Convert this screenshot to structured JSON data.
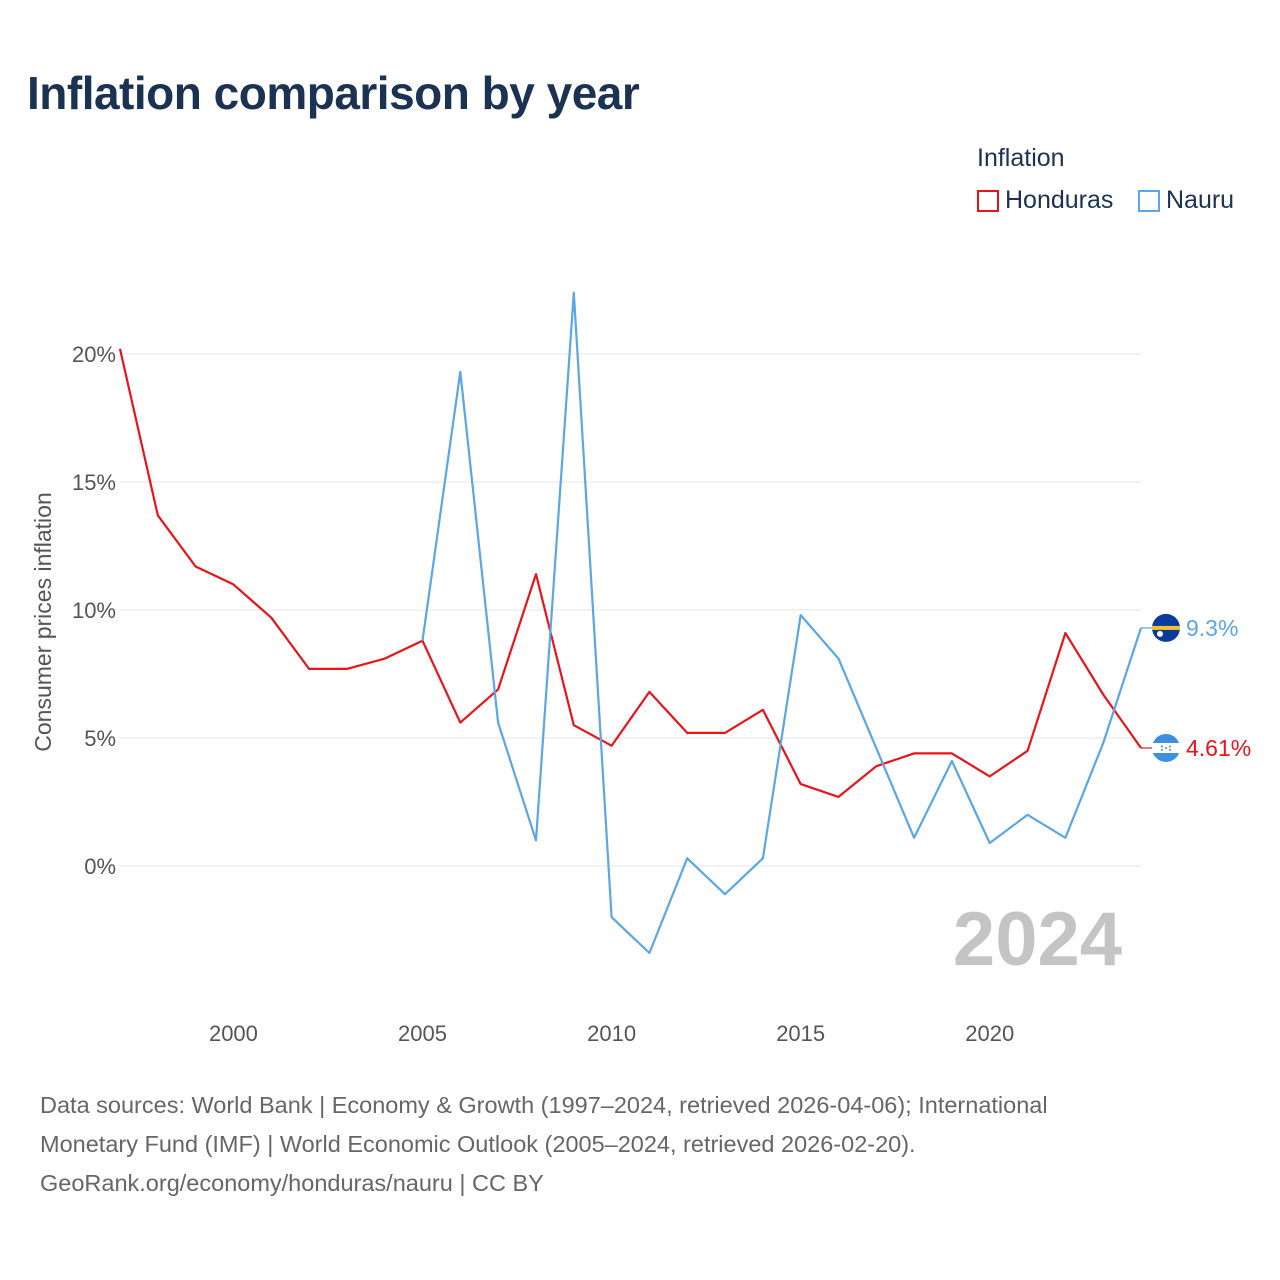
{
  "title": "Inflation comparison by year",
  "legend": {
    "title": "Inflation",
    "items": [
      {
        "label": "Honduras",
        "color": "#e8141b"
      },
      {
        "label": "Nauru",
        "color": "#5aa6e6"
      }
    ]
  },
  "chart_data": {
    "type": "line",
    "title": "Inflation comparison by year",
    "xlabel": "",
    "ylabel": "Consumer prices inflation",
    "xlim": [
      1997,
      2024
    ],
    "ylim": [
      -5,
      22.5
    ],
    "x_ticks": [
      2000,
      2005,
      2010,
      2015,
      2020
    ],
    "y_ticks": [
      0,
      5,
      10,
      15,
      20
    ],
    "y_tick_labels": [
      "0%",
      "5%",
      "10%",
      "15%",
      "20%"
    ],
    "grid": true,
    "legend_position": "top-right",
    "watermark_year": "2024",
    "series": [
      {
        "name": "Honduras",
        "color": "#e8141b",
        "x": [
          1997,
          1998,
          1999,
          2000,
          2001,
          2002,
          2003,
          2004,
          2005,
          2006,
          2007,
          2008,
          2009,
          2010,
          2011,
          2012,
          2013,
          2014,
          2015,
          2016,
          2017,
          2018,
          2019,
          2020,
          2021,
          2022,
          2023,
          2024
        ],
        "values": [
          20.2,
          13.7,
          11.7,
          11.0,
          9.7,
          7.7,
          7.7,
          8.1,
          8.8,
          5.6,
          6.9,
          11.4,
          5.5,
          4.7,
          6.8,
          5.2,
          5.2,
          6.1,
          3.2,
          2.7,
          3.9,
          4.4,
          4.4,
          3.5,
          4.5,
          9.1,
          6.7,
          4.61
        ],
        "end_label": "4.61%"
      },
      {
        "name": "Nauru",
        "color": "#5aa6e6",
        "x": [
          2005,
          2006,
          2007,
          2008,
          2009,
          2010,
          2011,
          2012,
          2013,
          2014,
          2015,
          2016,
          2017,
          2018,
          2019,
          2020,
          2021,
          2022,
          2023,
          2024
        ],
        "values": [
          8.8,
          19.3,
          5.6,
          1.0,
          22.4,
          -2.0,
          -3.4,
          0.3,
          -1.1,
          0.3,
          9.8,
          8.1,
          4.6,
          1.1,
          4.1,
          0.9,
          2.0,
          1.1,
          4.8,
          9.3
        ],
        "end_label": "9.3%"
      }
    ]
  },
  "sources": {
    "line1": "Data sources: World Bank | Economy & Growth (1997–2024, retrieved 2026-04-06); International",
    "line2": "Monetary Fund (IMF) | World Economic Outlook (2005–2024, retrieved 2026-02-20).",
    "line3": "GeoRank.org/economy/honduras/nauru | CC BY"
  }
}
